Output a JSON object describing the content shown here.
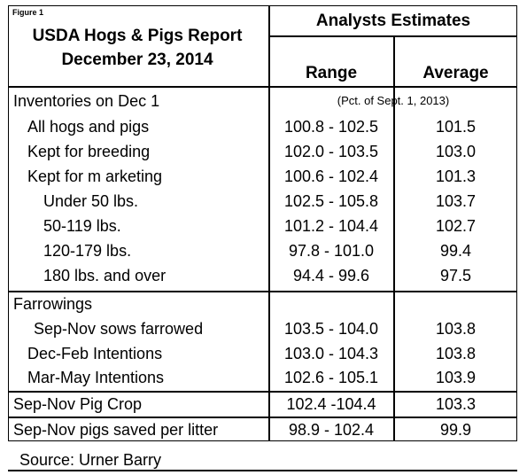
{
  "figure_label": "Figure 1",
  "report_title_line1": "USDA Hogs & Pigs Report",
  "report_title_line2": "December 23, 2014",
  "header": {
    "group": "Analysts Estimates",
    "range": "Range",
    "average": "Average"
  },
  "pct_note": "(Pct. of Sept. 1, 2013)",
  "rows": [
    {
      "label": "Inventories on Dec 1",
      "range": "",
      "average": ""
    },
    {
      "label": "All hogs and pigs",
      "range": "100.8 - 102.5",
      "average": "101.5"
    },
    {
      "label": "Kept for breeding",
      "range": "102.0 - 103.5",
      "average": "103.0"
    },
    {
      "label": "Kept for m arketing",
      "range": "100.6 - 102.4",
      "average": "101.3"
    },
    {
      "label": "Under 50 lbs.",
      "range": "102.5 - 105.8",
      "average": "103.7"
    },
    {
      "label": "50-119 lbs.",
      "range": "101.2 - 104.4",
      "average": "102.7"
    },
    {
      "label": "120-179 lbs.",
      "range": "97.8 - 101.0",
      "average": "99.4"
    },
    {
      "label": "180 lbs. and over",
      "range": "94.4 - 99.6",
      "average": "97.5"
    },
    {
      "label": "Farrowings",
      "range": "",
      "average": ""
    },
    {
      "label": "Sep-Nov sows farrowed",
      "range": "103.5 - 104.0",
      "average": "103.8"
    },
    {
      "label": "Dec-Feb Intentions",
      "range": "103.0 - 104.3",
      "average": "103.8"
    },
    {
      "label": "Mar-May Intentions",
      "range": "102.6 - 105.1",
      "average": "103.9"
    },
    {
      "label": "Sep-Nov Pig Crop",
      "range": "102.4 -104.4",
      "average": "103.3"
    },
    {
      "label": "Sep-Nov pigs saved per litter",
      "range": "98.9 - 102.4",
      "average": "99.9"
    }
  ],
  "source": "Source:  Urner Barry"
}
